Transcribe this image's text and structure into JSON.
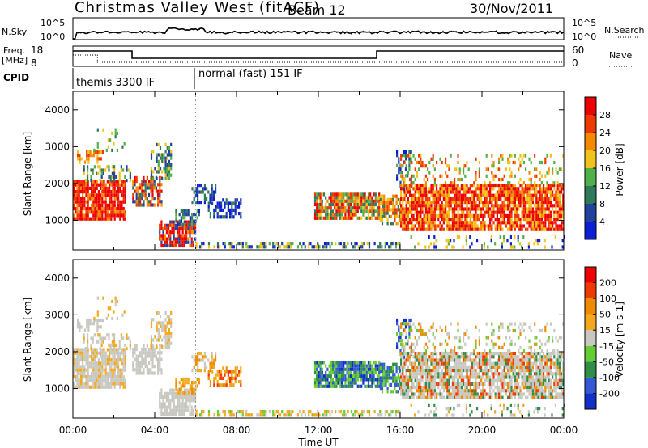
{
  "header": {
    "title": "Christmas Valley West (fitACF)",
    "beam": "Beam 12",
    "date": "30/Nov/2011"
  },
  "labels": {
    "nsky": "N.Sky",
    "nsearch": "N.Search",
    "freq_line1": "Freq.",
    "freq_line2": "[MHz]",
    "nave": "Nave",
    "cpid": "CPID",
    "mode1": "themis 3300 IF",
    "mode2": "normal (fast) 151 IF",
    "ylabel_top": "Slant Range [km]",
    "ylabel_bottom": "Slant Range [km]",
    "power_label": "Power [dB]",
    "velocity_label": "Velocity [m s-1]",
    "xlabel": "Time UT"
  },
  "noise_panel": {
    "left_ticks": [
      "10^5",
      "10^0"
    ],
    "right_ticks": [
      "10^5",
      "10^0"
    ]
  },
  "freq_panel": {
    "left_ticks": [
      "18",
      "8"
    ],
    "right_ticks": [
      "60",
      "0"
    ]
  },
  "chart_data": [
    {
      "type": "heatmap",
      "name": "power",
      "x_ticks": [
        "00:00",
        "04:00",
        "08:00",
        "12:00",
        "16:00",
        "20:00",
        "00:00"
      ],
      "y_ticks": [
        1000,
        2000,
        3000,
        4000
      ],
      "ylim": [
        200,
        4500
      ],
      "colorbar_ticks": [
        4,
        8,
        12,
        16,
        20,
        24,
        28
      ],
      "colors": [
        "#0b1fd6",
        "#22429c",
        "#2e7a5a",
        "#52b04a",
        "#f2c21c",
        "#f58a00",
        "#ee3a00",
        "#ee0000"
      ]
    },
    {
      "type": "heatmap",
      "name": "velocity",
      "x_ticks": [
        "00:00",
        "04:00",
        "08:00",
        "12:00",
        "16:00",
        "20:00",
        "00:00"
      ],
      "y_ticks": [
        1000,
        2000,
        3000,
        4000
      ],
      "ylim": [
        200,
        4500
      ],
      "colorbar_ticks": [
        200,
        100,
        50,
        15,
        -15,
        -50,
        -100,
        -200
      ],
      "colors": [
        "#1230c8",
        "#3458d8",
        "#2f8f4a",
        "#66cc33",
        "#c8c8c0",
        "#f4a81c",
        "#f08a00",
        "#ee3a00",
        "#ee0000"
      ]
    }
  ]
}
